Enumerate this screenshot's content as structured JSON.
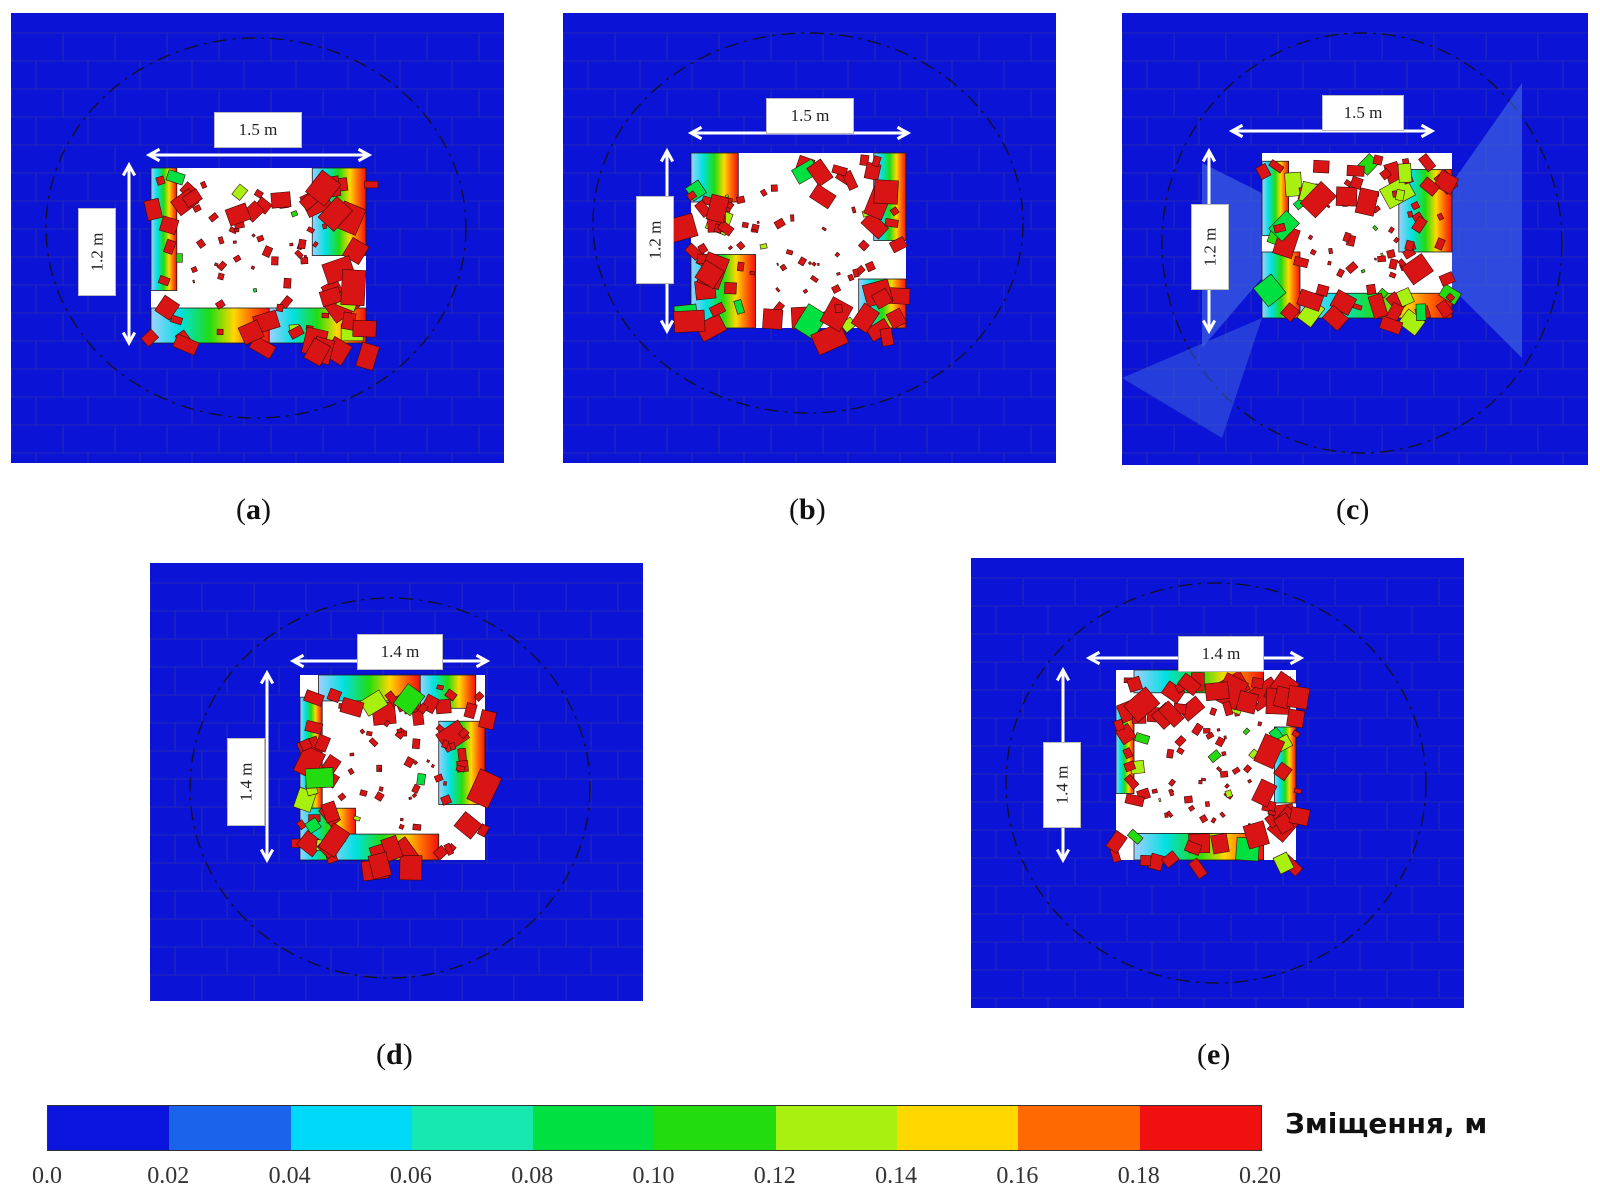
{
  "panels": [
    {
      "caption": "a",
      "width_label": "1.5 m",
      "height_label": "1.2 m"
    },
    {
      "caption": "b",
      "width_label": "1.5 m",
      "height_label": "1.2 m"
    },
    {
      "caption": "c",
      "width_label": "1.5 m",
      "height_label": "1.2 m"
    },
    {
      "caption": "d",
      "width_label": "1.4 m",
      "height_label": "1.4 m"
    },
    {
      "caption": "e",
      "width_label": "1.4 m",
      "height_label": "1.4 m"
    }
  ],
  "colorbar": {
    "title": "Зміщення, м",
    "ticks": [
      "0.0",
      "0.02",
      "0.04",
      "0.06",
      "0.08",
      "0.10",
      "0.12",
      "0.14",
      "0.16",
      "0.18",
      "0.20"
    ],
    "colors": [
      "#0a14dc",
      "#1a64ec",
      "#00d8f8",
      "#16e8b0",
      "#00e040",
      "#22dc10",
      "#a8f010",
      "#ffd800",
      "#ff6a00",
      "#f01010"
    ]
  }
}
